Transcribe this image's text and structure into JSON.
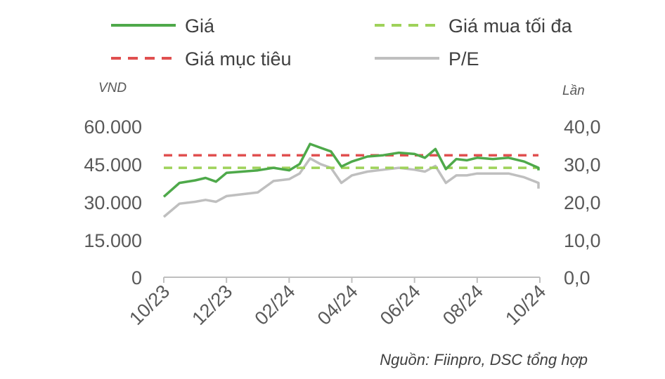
{
  "chart_data": {
    "type": "line",
    "legend": {
      "placement": "top",
      "entries": [
        {
          "key": "price",
          "label": "Giá",
          "color": "#4ea94a",
          "dash": "solid"
        },
        {
          "key": "max_buy",
          "label": "Giá mua tối đa",
          "color": "#9fd25a",
          "dash": "dashed"
        },
        {
          "key": "target",
          "label": "Giá mục tiêu",
          "color": "#e05050",
          "dash": "dashed"
        },
        {
          "key": "pe",
          "label": "P/E",
          "color": "#bfbfbf",
          "dash": "solid"
        }
      ]
    },
    "left_axis": {
      "unit": "VND",
      "ticks": [
        "60.000",
        "45.000",
        "30.000",
        "15.000",
        "0"
      ],
      "range": [
        0,
        60000
      ]
    },
    "right_axis": {
      "unit": "Lần",
      "ticks": [
        "40,0",
        "30,0",
        "20,0",
        "10,0",
        "0,0"
      ],
      "range": [
        0,
        40
      ]
    },
    "x_axis": {
      "ticks": [
        "10/23",
        "12/23",
        "02/24",
        "04/24",
        "06/24",
        "08/24",
        "10/24"
      ]
    },
    "grid": false,
    "series": [
      {
        "name": "Giá",
        "axis": "left",
        "x": [
          "10/23",
          "10/23",
          "11/23",
          "11/23",
          "11/23",
          "12/23",
          "12/23",
          "01/24",
          "01/24",
          "02/24",
          "02/24",
          "02/24",
          "03/24",
          "03/24",
          "03/24",
          "04/24",
          "04/24",
          "05/24",
          "05/24",
          "06/24",
          "06/24",
          "06/24",
          "07/24",
          "07/24",
          "07/24",
          "08/24",
          "08/24",
          "09/24",
          "09/24",
          "10/24",
          "10/24"
        ],
        "y": [
          32000,
          37500,
          38500,
          39500,
          38000,
          41500,
          42000,
          42500,
          43500,
          42500,
          45000,
          53000,
          51500,
          50000,
          44000,
          46000,
          48000,
          48500,
          49500,
          49000,
          47500,
          51000,
          43000,
          47000,
          46500,
          47500,
          47000,
          47500,
          46000,
          43500,
          42500
        ]
      },
      {
        "name": "Giá mua tối đa",
        "axis": "left",
        "x": [
          "10/23",
          "10/24"
        ],
        "y": [
          43500,
          43500
        ]
      },
      {
        "name": "Giá mục tiêu",
        "axis": "left",
        "x": [
          "10/23",
          "10/24"
        ],
        "y": [
          48500,
          48500
        ]
      },
      {
        "name": "P/E",
        "axis": "right",
        "x": [
          "10/23",
          "10/23",
          "11/23",
          "11/23",
          "11/23",
          "12/23",
          "12/23",
          "01/24",
          "01/24",
          "02/24",
          "02/24",
          "02/24",
          "03/24",
          "03/24",
          "03/24",
          "04/24",
          "04/24",
          "05/24",
          "05/24",
          "06/24",
          "06/24",
          "06/24",
          "07/24",
          "07/24",
          "07/24",
          "08/24",
          "08/24",
          "09/24",
          "09/24",
          "10/24",
          "10/24"
        ],
        "y": [
          16.0,
          19.5,
          20.0,
          20.5,
          20.0,
          21.5,
          22.0,
          22.5,
          25.5,
          26.0,
          27.5,
          31.5,
          30.0,
          29.0,
          25.0,
          27.0,
          28.0,
          28.5,
          29.0,
          28.5,
          28.0,
          29.5,
          25.0,
          27.0,
          27.0,
          27.5,
          27.5,
          27.5,
          26.5,
          25.0,
          23.5
        ]
      }
    ]
  },
  "source": "Nguồn: Fiinpro, DSC tổng hợp"
}
